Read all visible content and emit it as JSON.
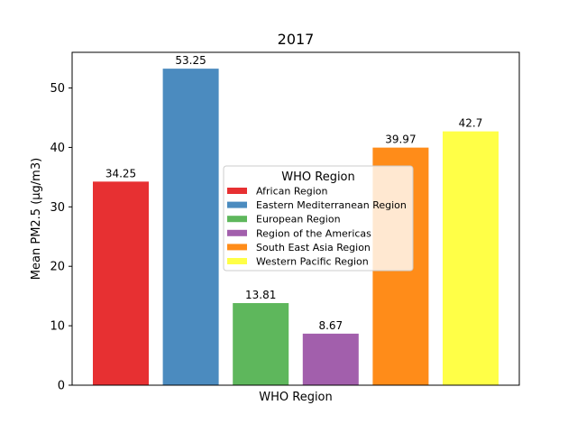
{
  "chart_data": {
    "type": "bar",
    "title": "2017",
    "xlabel": "WHO Region",
    "ylabel": "Mean PM2.5 (μg/m3)",
    "ylim": [
      0,
      56
    ],
    "yticks": [
      0,
      10,
      20,
      30,
      40,
      50
    ],
    "grid": false,
    "categories": [
      "African Region",
      "Eastern Mediterranean Region",
      "European Region",
      "Region of the Americas",
      "South East Asia Region",
      "Western Pacific Region"
    ],
    "values": [
      34.25,
      53.25,
      13.81,
      8.67,
      39.97,
      42.7
    ],
    "data_labels": [
      "34.25",
      "53.25",
      "13.81",
      "8.67",
      "39.97",
      "42.7"
    ],
    "colors": [
      "#e41a1c",
      "#377eb8",
      "#4daf4a",
      "#984ea3",
      "#ff7f00",
      "#ffff33"
    ],
    "legend": {
      "title": "WHO Region",
      "placement": "center-right",
      "entries": [
        "African Region",
        "Eastern Mediterranean Region",
        "European Region",
        "Region of the Americas",
        "South East Asia Region",
        "Western Pacific Region"
      ]
    }
  }
}
